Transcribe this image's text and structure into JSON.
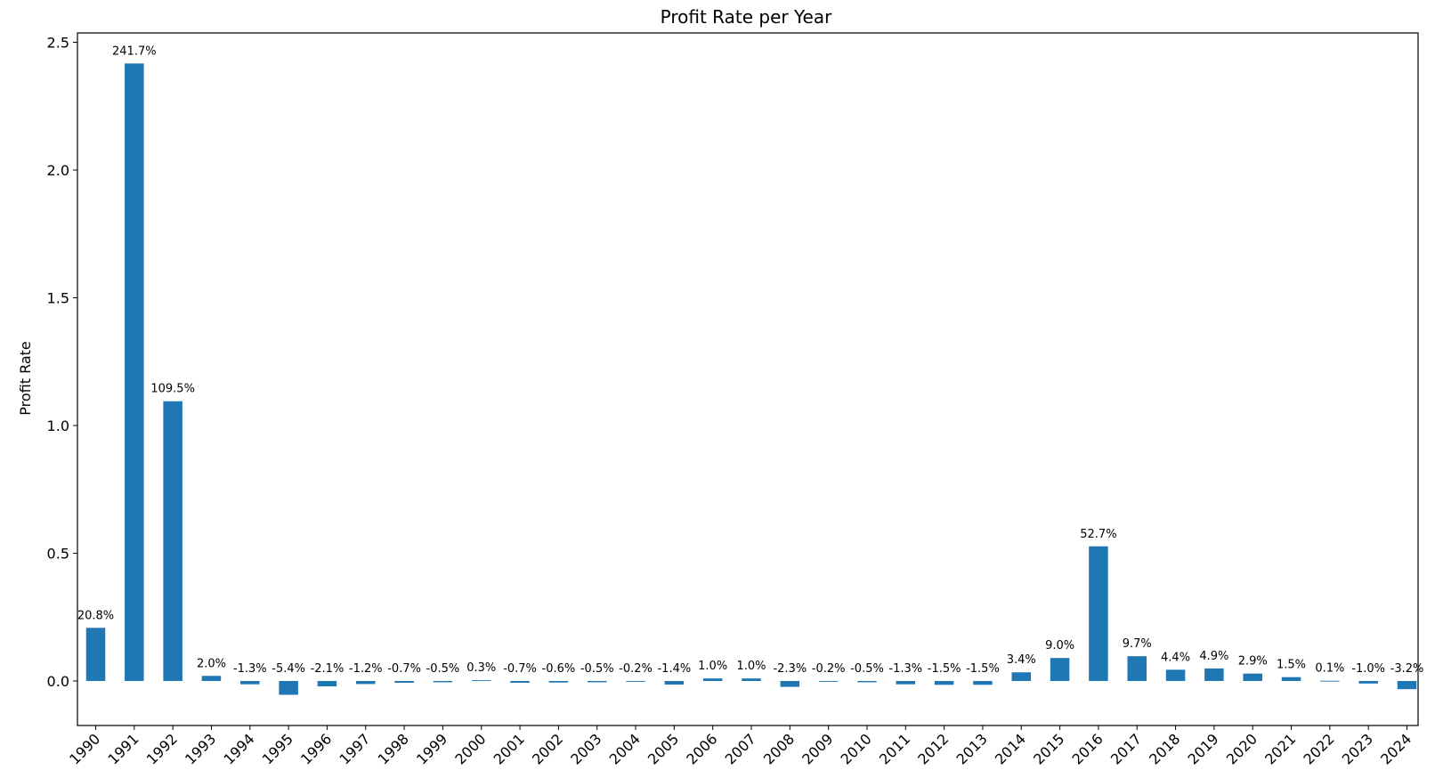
{
  "chart_data": {
    "type": "bar",
    "title": "Profit Rate per Year",
    "xlabel": "",
    "ylabel": "Profit Rate",
    "ylim": [
      -0.18,
      2.53
    ],
    "yticks": [
      "0.0",
      "0.5",
      "1.0",
      "1.5",
      "2.0",
      "2.5"
    ],
    "ytick_values": [
      0.0,
      0.5,
      1.0,
      1.5,
      2.0,
      2.5
    ],
    "grid": false,
    "legend": "none",
    "bar_color": "#1f77b4",
    "categories": [
      "1990",
      "1991",
      "1992",
      "1993",
      "1994",
      "1995",
      "1996",
      "1997",
      "1998",
      "1999",
      "2000",
      "2001",
      "2002",
      "2003",
      "2004",
      "2005",
      "2006",
      "2007",
      "2008",
      "2009",
      "2010",
      "2011",
      "2012",
      "2013",
      "2014",
      "2015",
      "2016",
      "2017",
      "2018",
      "2019",
      "2020",
      "2021",
      "2022",
      "2023",
      "2024"
    ],
    "values": [
      0.208,
      2.417,
      1.095,
      0.02,
      -0.013,
      -0.054,
      -0.021,
      -0.012,
      -0.007,
      -0.005,
      0.003,
      -0.007,
      -0.006,
      -0.005,
      -0.002,
      -0.014,
      0.01,
      0.01,
      -0.023,
      -0.002,
      -0.005,
      -0.013,
      -0.015,
      -0.015,
      0.034,
      0.09,
      0.527,
      0.097,
      0.044,
      0.049,
      0.029,
      0.015,
      0.001,
      -0.01,
      -0.032
    ],
    "labels": [
      "20.8%",
      "241.7%",
      "109.5%",
      "2.0%",
      "-1.3%",
      "-5.4%",
      "-2.1%",
      "-1.2%",
      "-0.7%",
      "-0.5%",
      "0.3%",
      "-0.7%",
      "-0.6%",
      "-0.5%",
      "-0.2%",
      "-1.4%",
      "1.0%",
      "1.0%",
      "-2.3%",
      "-0.2%",
      "-0.5%",
      "-1.3%",
      "-1.5%",
      "-1.5%",
      "3.4%",
      "9.0%",
      "52.7%",
      "9.7%",
      "4.4%",
      "4.9%",
      "2.9%",
      "1.5%",
      "0.1%",
      "-1.0%",
      "-3.2%"
    ]
  }
}
